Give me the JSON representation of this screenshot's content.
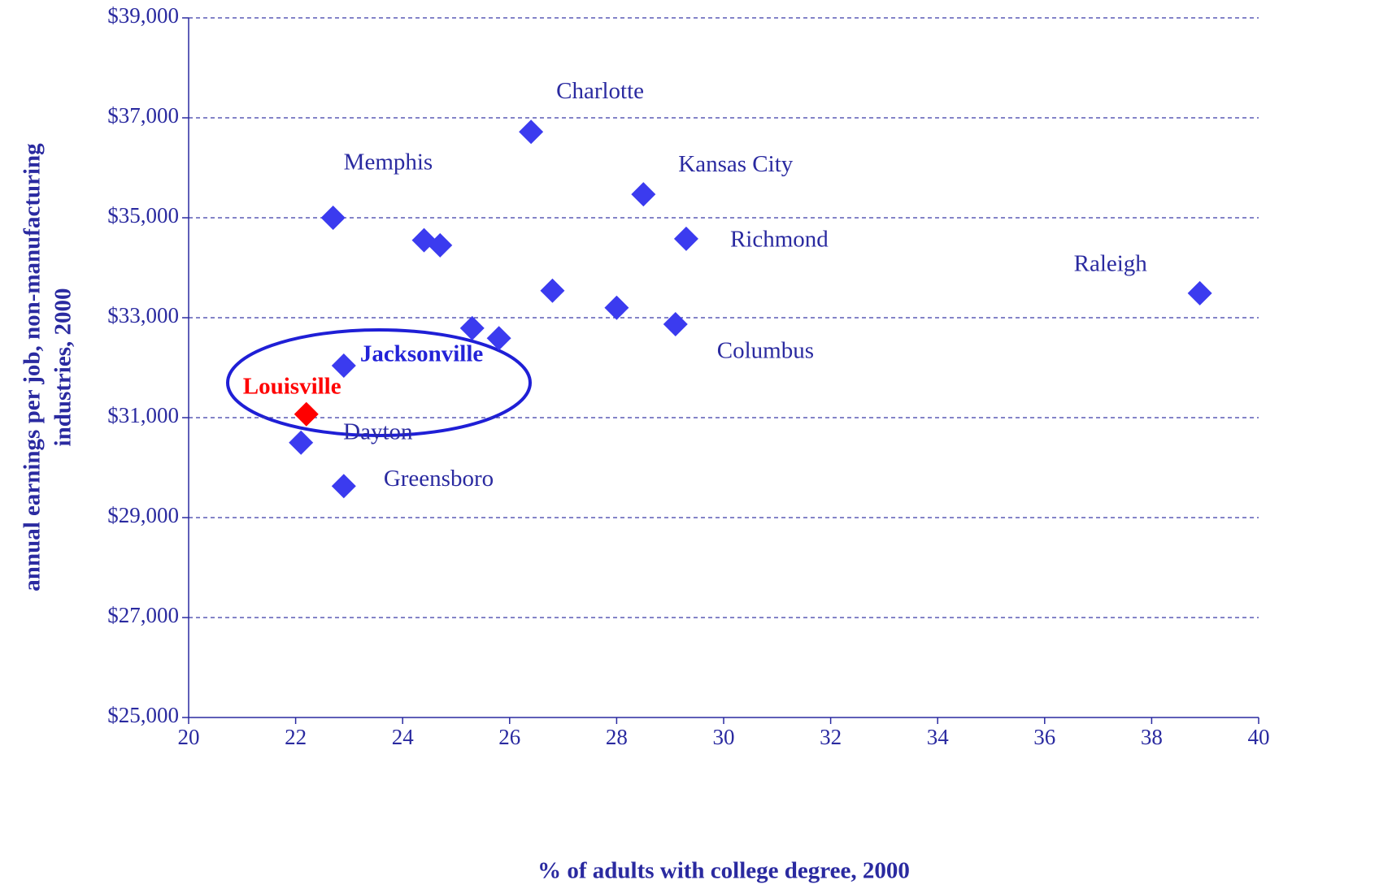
{
  "chart_data": {
    "type": "scatter",
    "x_label": "% of adults with college degree, 2000",
    "y_label": [
      "annual earnings per job, non-manufacturing",
      "industries, 2000"
    ],
    "x": [
      22.7,
      24.4,
      24.7,
      26.4,
      28.5,
      29.3,
      38.9,
      26.8,
      28.0,
      29.1,
      25.3,
      25.8,
      22.9,
      22.2,
      22.1,
      22.9
    ],
    "y": [
      35000,
      34550,
      34450,
      36720,
      35470,
      34580,
      33490,
      33540,
      33200,
      32870,
      32790,
      32590,
      32040,
      31070,
      30500,
      29630
    ],
    "labels": [
      "Memphis",
      null,
      null,
      "Charlotte",
      "Kansas City",
      "Richmond",
      "Raleigh",
      null,
      null,
      "Columbus",
      null,
      null,
      "Jacksonville",
      "Louisville",
      "Dayton",
      "Greensboro"
    ],
    "colors": [
      "#3b3bef",
      "#3b3bef",
      "#3b3bef",
      "#3b3bef",
      "#3b3bef",
      "#3b3bef",
      "#3b3bef",
      "#3b3bef",
      "#3b3bef",
      "#3b3bef",
      "#3b3bef",
      "#3b3bef",
      "#3b3bef",
      "#ff0000",
      "#3b3bef",
      "#3b3bef"
    ],
    "xlim": [
      20,
      40
    ],
    "xticks": [
      20,
      22,
      24,
      26,
      28,
      30,
      32,
      34,
      36,
      38,
      40
    ],
    "ylim": [
      25000,
      39000
    ],
    "yticks": [
      {
        "value": 25000,
        "label": "$25,000"
      },
      {
        "value": 27000,
        "label": "$27,000"
      },
      {
        "value": 29000,
        "label": "$29,000"
      },
      {
        "value": 31000,
        "label": "$31,000"
      },
      {
        "value": 33000,
        "label": "$33,000"
      },
      {
        "value": 35000,
        "label": "$35,000"
      },
      {
        "value": 37000,
        "label": "$37,000"
      },
      {
        "value": 39000,
        "label": "$39,000"
      }
    ],
    "grid": true
  }
}
